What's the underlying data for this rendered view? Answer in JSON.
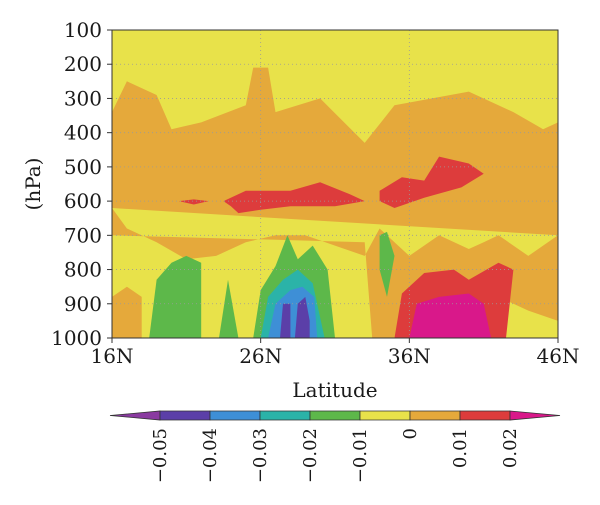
{
  "chart_data": {
    "type": "heatmap",
    "title": "",
    "xlabel": "Latitude",
    "ylabel": "(hPa)",
    "x_ticks": [
      "16N",
      "26N",
      "36N",
      "46N"
    ],
    "x_tick_values": [
      16,
      26,
      36,
      46
    ],
    "y_ticks": [
      "100",
      "200",
      "300",
      "400",
      "500",
      "600",
      "700",
      "800",
      "900",
      "1000"
    ],
    "y_tick_values": [
      100,
      200,
      300,
      400,
      500,
      600,
      700,
      800,
      900,
      1000
    ],
    "xlim": [
      16,
      46
    ],
    "ylim": [
      100,
      1000
    ],
    "y_inverted": true,
    "grid": true,
    "colorbar": {
      "orientation": "horizontal",
      "placement": "bottom",
      "labels": [
        "−0.05",
        "−0.04",
        "−0.03",
        "−0.02",
        "−0.01",
        "0",
        "0.01",
        "0.02"
      ],
      "label_values": [
        -0.05,
        -0.04,
        -0.03,
        -0.02,
        -0.01,
        0,
        0.01,
        0.02
      ],
      "levels": [
        {
          "min": -0.06,
          "max": -0.05,
          "color": "#8a3aa0"
        },
        {
          "min": -0.05,
          "max": -0.04,
          "color": "#5b3fa8"
        },
        {
          "min": -0.04,
          "max": -0.03,
          "color": "#3e8fd6"
        },
        {
          "min": -0.03,
          "max": -0.02,
          "color": "#2bb3a8"
        },
        {
          "min": -0.02,
          "max": -0.01,
          "color": "#5db84a"
        },
        {
          "min": -0.01,
          "max": 0.0,
          "color": "#e8e24a"
        },
        {
          "min": 0.0,
          "max": 0.01,
          "color": "#e5a93b"
        },
        {
          "min": 0.01,
          "max": 0.02,
          "color": "#dd3c3c"
        },
        {
          "min": 0.02,
          "max": 0.03,
          "color": "#d9188a"
        }
      ]
    },
    "regions": [
      {
        "level": 0.005,
        "label": "positive-band-upper",
        "points": [
          [
            16,
            340
          ],
          [
            17,
            250
          ],
          [
            19,
            290
          ],
          [
            20,
            390
          ],
          [
            22,
            370
          ],
          [
            25,
            320
          ],
          [
            25.5,
            210
          ],
          [
            26.5,
            210
          ],
          [
            27,
            340
          ],
          [
            30,
            300
          ],
          [
            33,
            430
          ],
          [
            35,
            320
          ],
          [
            40,
            280
          ],
          [
            43,
            340
          ],
          [
            45,
            390
          ],
          [
            46,
            370
          ],
          [
            46,
            700
          ],
          [
            16,
            620
          ]
        ]
      },
      {
        "level": 0.005,
        "label": "positive-band-lower-west",
        "points": [
          [
            16,
            620
          ],
          [
            17,
            680
          ],
          [
            19,
            720
          ],
          [
            21,
            770
          ],
          [
            23,
            760
          ],
          [
            25,
            720
          ],
          [
            27,
            700
          ],
          [
            29,
            700
          ],
          [
            31,
            730
          ],
          [
            33,
            760
          ],
          [
            34,
            680
          ],
          [
            35,
            720
          ],
          [
            36,
            760
          ],
          [
            38,
            700
          ],
          [
            40,
            740
          ],
          [
            41,
            720
          ],
          [
            42,
            700
          ],
          [
            44,
            760
          ],
          [
            46,
            700
          ],
          [
            46,
            950
          ],
          [
            44,
            920
          ],
          [
            42,
            880
          ],
          [
            40,
            900
          ],
          [
            38,
            860
          ],
          [
            36,
            870
          ],
          [
            35,
            1000
          ],
          [
            33.5,
            1000
          ],
          [
            33,
            720
          ],
          [
            16,
            700
          ]
        ]
      },
      {
        "level": 0.005,
        "label": "positive-surface-west",
        "points": [
          [
            16,
            880
          ],
          [
            17,
            850
          ],
          [
            18,
            880
          ],
          [
            18,
            1000
          ],
          [
            16,
            1000
          ]
        ]
      },
      {
        "level": 0.015,
        "label": "red-core-west",
        "points": [
          [
            20.5,
            600
          ],
          [
            21.5,
            595
          ],
          [
            22.5,
            600
          ],
          [
            21.5,
            610
          ]
        ]
      },
      {
        "level": 0.015,
        "label": "red-core-central",
        "points": [
          [
            23.5,
            600
          ],
          [
            25,
            570
          ],
          [
            28,
            570
          ],
          [
            30,
            545
          ],
          [
            32,
            580
          ],
          [
            33,
            600
          ],
          [
            31,
            615
          ],
          [
            28,
            615
          ],
          [
            26,
            625
          ],
          [
            24.5,
            635
          ],
          [
            24,
            615
          ]
        ]
      },
      {
        "level": 0.015,
        "label": "red-core-east",
        "points": [
          [
            34,
            570
          ],
          [
            35.5,
            530
          ],
          [
            37,
            540
          ],
          [
            38,
            470
          ],
          [
            40,
            490
          ],
          [
            41,
            520
          ],
          [
            39.5,
            560
          ],
          [
            37,
            590
          ],
          [
            35,
            620
          ],
          [
            34,
            600
          ]
        ]
      },
      {
        "level": 0.015,
        "label": "red-lower-east",
        "points": [
          [
            35,
            1000
          ],
          [
            35.5,
            870
          ],
          [
            37,
            810
          ],
          [
            39,
            800
          ],
          [
            40,
            830
          ],
          [
            42,
            780
          ],
          [
            43,
            800
          ],
          [
            42.5,
            1000
          ]
        ]
      },
      {
        "level": 0.025,
        "label": "magenta-core",
        "points": [
          [
            36,
            1000
          ],
          [
            36.5,
            900
          ],
          [
            38,
            880
          ],
          [
            40,
            870
          ],
          [
            41,
            900
          ],
          [
            41.5,
            1000
          ]
        ]
      },
      {
        "level": -0.015,
        "label": "green-west",
        "points": [
          [
            18.5,
            1000
          ],
          [
            19,
            830
          ],
          [
            20,
            780
          ],
          [
            21,
            760
          ],
          [
            22,
            780
          ],
          [
            22,
            1000
          ]
        ]
      },
      {
        "level": -0.015,
        "label": "green-narrow",
        "points": [
          [
            23.2,
            1000
          ],
          [
            23.8,
            830
          ],
          [
            24.5,
            1000
          ]
        ]
      },
      {
        "level": -0.015,
        "label": "green-central",
        "points": [
          [
            25.5,
            1000
          ],
          [
            26,
            860
          ],
          [
            27,
            790
          ],
          [
            27.8,
            700
          ],
          [
            28.5,
            770
          ],
          [
            29.5,
            730
          ],
          [
            30.5,
            800
          ],
          [
            31,
            1000
          ]
        ]
      },
      {
        "level": -0.015,
        "label": "green-east-tongue",
        "points": [
          [
            34,
            700
          ],
          [
            34.5,
            690
          ],
          [
            35,
            760
          ],
          [
            34.5,
            880
          ],
          [
            34,
            800
          ]
        ]
      },
      {
        "level": -0.025,
        "label": "teal-central",
        "points": [
          [
            26,
            1000
          ],
          [
            26.5,
            880
          ],
          [
            27.5,
            830
          ],
          [
            28.5,
            800
          ],
          [
            29.5,
            840
          ],
          [
            30.3,
            1000
          ]
        ]
      },
      {
        "level": -0.035,
        "label": "blue-central",
        "points": [
          [
            26.5,
            1000
          ],
          [
            27,
            900
          ],
          [
            28,
            860
          ],
          [
            28.8,
            850
          ],
          [
            29.6,
            880
          ],
          [
            29.8,
            1000
          ]
        ]
      },
      {
        "level": -0.045,
        "label": "indigo-central",
        "points": [
          [
            27.3,
            1000
          ],
          [
            27.5,
            900
          ],
          [
            28,
            900
          ],
          [
            28,
            1000
          ]
        ]
      },
      {
        "level": -0.045,
        "label": "indigo-central-2",
        "points": [
          [
            28.3,
            1000
          ],
          [
            28.5,
            900
          ],
          [
            29,
            880
          ],
          [
            29.3,
            950
          ],
          [
            29.3,
            1000
          ]
        ]
      }
    ],
    "plot_background_level": -0.005
  }
}
